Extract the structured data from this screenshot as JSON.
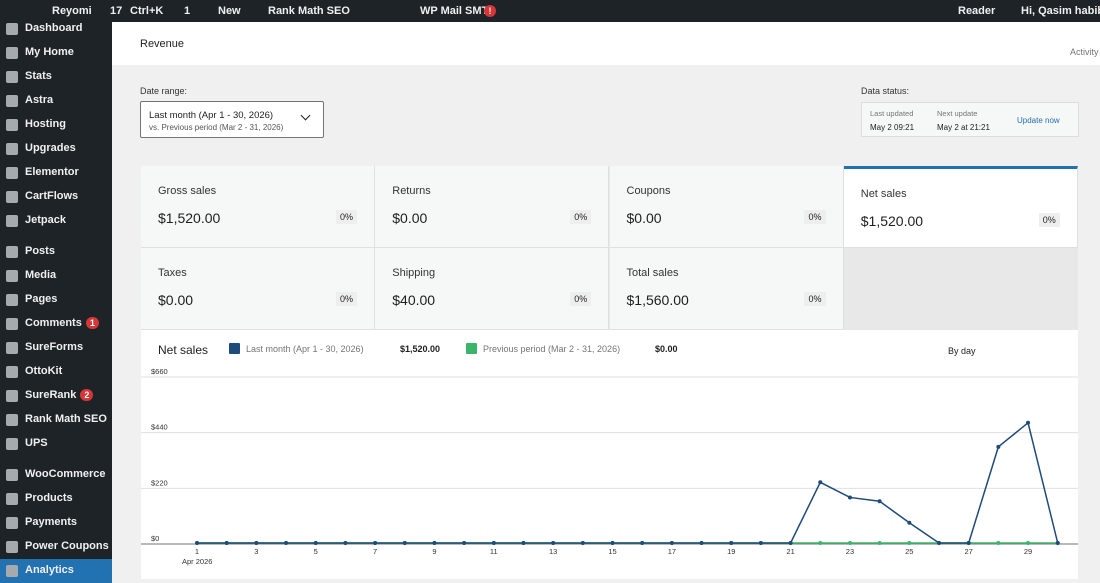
{
  "admin_bar": {
    "site": "Reyomi",
    "updates": "17",
    "shortcut": "Ctrl+K",
    "comments": "1",
    "new": "New",
    "seo": "Rank Math SEO",
    "smtp": "WP Mail SMTP",
    "smtp_badge": "!",
    "reader": "Reader",
    "greeting": "Hi, Qasim habib"
  },
  "sidebar": [
    {
      "label": "Dashboard"
    },
    {
      "label": "My Home"
    },
    {
      "label": "Stats"
    },
    {
      "label": "Astra"
    },
    {
      "label": "Hosting"
    },
    {
      "label": "Upgrades"
    },
    {
      "label": "Elementor"
    },
    {
      "label": "CartFlows"
    },
    {
      "label": "Jetpack"
    },
    {
      "label": "Posts"
    },
    {
      "label": "Media"
    },
    {
      "label": "Pages"
    },
    {
      "label": "Comments",
      "badge": "1"
    },
    {
      "label": "SureForms"
    },
    {
      "label": "OttoKit"
    },
    {
      "label": "SureRank",
      "badge": "2"
    },
    {
      "label": "Rank Math SEO"
    },
    {
      "label": "UPS"
    },
    {
      "label": "WooCommerce"
    },
    {
      "label": "Products"
    },
    {
      "label": "Payments"
    },
    {
      "label": "Power Coupons"
    },
    {
      "label": "Analytics",
      "active": true
    }
  ],
  "header": {
    "title": "Revenue",
    "activity": "Activity"
  },
  "date_range": {
    "label": "Date range:",
    "primary": "Last month (Apr 1 - 30, 2026)",
    "secondary": "vs. Previous period (Mar 2 - 31, 2026)"
  },
  "data_status": {
    "label": "Data status:",
    "last_label": "Last updated",
    "last_value": "May 2 09:21",
    "next_label": "Next update",
    "next_value": "May 2 at 21:21",
    "action": "Update now"
  },
  "tiles": [
    {
      "label": "Gross sales",
      "value": "$1,520.00",
      "change": "0%"
    },
    {
      "label": "Returns",
      "value": "$0.00",
      "change": "0%"
    },
    {
      "label": "Coupons",
      "value": "$0.00",
      "change": "0%"
    },
    {
      "label": "Net sales",
      "value": "$1,520.00",
      "change": "0%",
      "selected": true
    },
    {
      "label": "Taxes",
      "value": "$0.00",
      "change": "0%"
    },
    {
      "label": "Shipping",
      "value": "$40.00",
      "change": "0%"
    },
    {
      "label": "Total sales",
      "value": "$1,560.00",
      "change": "0%"
    }
  ],
  "chart_header": {
    "title": "Net sales",
    "interval": "By day"
  },
  "chart_data": {
    "type": "line",
    "categories": [
      "1",
      null,
      "3",
      null,
      "5",
      null,
      "7",
      null,
      "9",
      null,
      "11",
      null,
      "13",
      null,
      "15",
      null,
      "17",
      null,
      "19",
      null,
      "21",
      null,
      "23",
      null,
      "25",
      null,
      "27",
      null,
      "29",
      null
    ],
    "x_sublabel": "Apr 2026",
    "series": [
      {
        "name": "Last month (Apr 1 - 30, 2026)",
        "total": "$1,520.00",
        "color": "#1e4b7a",
        "values": [
          0,
          0,
          0,
          0,
          0,
          0,
          0,
          0,
          0,
          0,
          0,
          0,
          0,
          0,
          0,
          0,
          0,
          0,
          0,
          0,
          0,
          240,
          180,
          165,
          80,
          0,
          0,
          380,
          475,
          0
        ]
      },
      {
        "name": "Previous period (Mar 2 - 31, 2026)",
        "total": "$0.00",
        "color": "#3bb56a",
        "values": [
          0,
          0,
          0,
          0,
          0,
          0,
          0,
          0,
          0,
          0,
          0,
          0,
          0,
          0,
          0,
          0,
          0,
          0,
          0,
          0,
          0,
          0,
          0,
          0,
          0,
          0,
          0,
          0,
          0,
          0
        ]
      }
    ],
    "ylim": [
      0,
      660
    ],
    "yticks": [
      {
        "value": 0,
        "label": "$0"
      },
      {
        "value": 220,
        "label": "$220"
      },
      {
        "value": 440,
        "label": "$440"
      },
      {
        "value": 660,
        "label": "$660"
      }
    ],
    "grid": true
  }
}
